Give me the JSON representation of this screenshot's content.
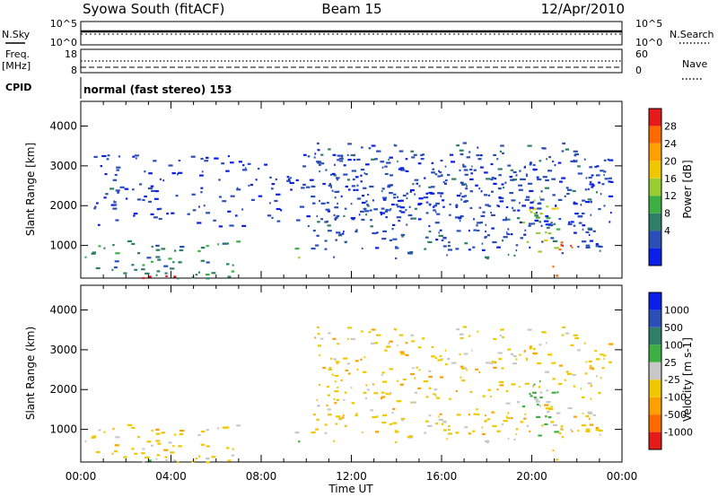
{
  "header": {
    "station": "Syowa South (fitACF)",
    "beam": "Beam 15",
    "date": "12/Apr/2010"
  },
  "aux_panels": {
    "nsky_label": "N.Sky",
    "nsky_ticks": [
      "10^5",
      "10^0"
    ],
    "nsearch_label": "N.Search",
    "nsearch_ticks": [
      "10^5",
      "10^0"
    ],
    "freq_label": "Freq.",
    "freq_unit": "[MHz]",
    "freq_ticks": [
      "18",
      "8"
    ],
    "nave_label": "Nave",
    "nave_ticks": [
      "60",
      "0"
    ],
    "cpid_label": "CPID",
    "cpid_text": "normal (fast stereo) 153"
  },
  "chart_data": [
    {
      "type": "heatmap",
      "panel": "power",
      "ylabel": "Slant Range [km]",
      "xlabel": "Time UT",
      "xticks": [
        "00:00",
        "04:00",
        "08:00",
        "12:00",
        "16:00",
        "20:00",
        "00:00"
      ],
      "xlim_hours": [
        0,
        24
      ],
      "yticks": [
        1000,
        2000,
        3000,
        4000
      ],
      "ylim": [
        180,
        4620
      ],
      "colorbar": {
        "label": "Power [dB]",
        "ticks": [
          "28",
          "24",
          "20",
          "16",
          "12",
          "8",
          "4"
        ],
        "range": [
          0,
          30
        ],
        "colors": [
          "#0a1fe8",
          "#2a4fb8",
          "#2e7f66",
          "#3cb043",
          "#9acd32",
          "#f0c800",
          "#ff9f00",
          "#ff6a00",
          "#e61a1a"
        ]
      },
      "echo_regions_hours_km": [
        {
          "t0": 0.0,
          "t1": 6.9,
          "r0": 180,
          "r1": 1150,
          "value": 9
        },
        {
          "t0": 0.0,
          "t1": 5.8,
          "r0": 180,
          "r1": 260,
          "value": 29
        },
        {
          "t0": 9.4,
          "t1": 10.1,
          "r0": 600,
          "r1": 980,
          "value": 12
        },
        {
          "t0": 10.2,
          "t1": 23.5,
          "r0": 700,
          "r1": 3600,
          "value": 5
        },
        {
          "t0": 19.5,
          "t1": 21.2,
          "r0": 800,
          "r1": 2300,
          "value": 15
        },
        {
          "t0": 20.9,
          "t1": 21.8,
          "r0": 180,
          "r1": 1200,
          "value": 25
        },
        {
          "t0": 0.5,
          "t1": 23.5,
          "r0": 1500,
          "r1": 3300,
          "value": 4
        }
      ]
    },
    {
      "type": "heatmap",
      "panel": "velocity",
      "ylabel": "Slant Range (km)",
      "xlabel": "Time UT",
      "xticks": [
        "00:00",
        "04:00",
        "08:00",
        "12:00",
        "16:00",
        "20:00",
        "00:00"
      ],
      "xlim_hours": [
        0,
        24
      ],
      "yticks": [
        1000,
        2000,
        3000,
        4000
      ],
      "ylim": [
        180,
        4620
      ],
      "colorbar": {
        "label": "Velocity [m s-1]",
        "ticks": [
          "1000",
          "500",
          "100",
          "25",
          "-25",
          "-100",
          "-500",
          "-1000"
        ],
        "range": [
          -1200,
          1200
        ],
        "colors": [
          "#e61a1a",
          "#ff6a00",
          "#ff9f00",
          "#f0c800",
          "#c8c8c8",
          "#3cb043",
          "#2e7f66",
          "#2a4fb8",
          "#0a1fe8"
        ]
      },
      "echo_regions_hours_km": [
        {
          "t0": 0.0,
          "t1": 6.9,
          "r0": 180,
          "r1": 1150,
          "value": -200
        },
        {
          "t0": 0.0,
          "t1": 5.8,
          "r0": 180,
          "r1": 260,
          "value": 60
        },
        {
          "t0": 9.4,
          "t1": 10.1,
          "r0": 600,
          "r1": 980,
          "value": 120
        },
        {
          "t0": 10.2,
          "t1": 23.5,
          "r0": 700,
          "r1": 3600,
          "value": -250
        },
        {
          "t0": 19.5,
          "t1": 21.2,
          "r0": 800,
          "r1": 2300,
          "value": 200
        },
        {
          "t0": 20.9,
          "t1": 21.8,
          "r0": 180,
          "r1": 1200,
          "value": -300
        }
      ]
    }
  ]
}
